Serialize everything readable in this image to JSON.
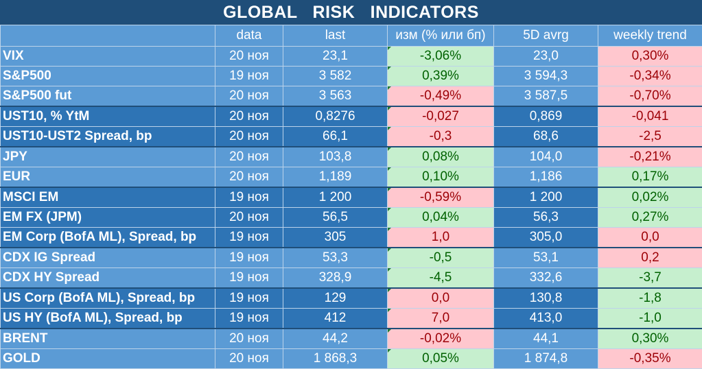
{
  "title": "GLOBAL   RISK   INDICATORS",
  "headers": [
    "",
    "data",
    "last",
    "изм (% или бп)",
    "5D avrg",
    "weekly trend"
  ],
  "colors": {
    "title_bg": "#1f4e79",
    "light_row": "#5b9bd5",
    "dark_row": "#2e74b5",
    "positive_bg": "#c6efce",
    "positive_text": "#006100",
    "negative_bg": "#ffc7ce",
    "negative_text": "#9c0006"
  },
  "rows": [
    {
      "name": "VIX",
      "date": "20 ноя",
      "last": "23,1",
      "change": "-3,06%",
      "change_tone": "pos",
      "avg5d": "23,0",
      "weekly": "0,30%",
      "weekly_tone": "neg",
      "shade": "light",
      "sep": false
    },
    {
      "name": "S&P500",
      "date": "19 ноя",
      "last": "3 582",
      "change": "0,39%",
      "change_tone": "pos",
      "avg5d": "3 594,3",
      "weekly": "-0,34%",
      "weekly_tone": "neg",
      "shade": "light",
      "sep": false
    },
    {
      "name": "S&P500 fut",
      "date": "20 ноя",
      "last": "3 563",
      "change": "-0,49%",
      "change_tone": "neg",
      "avg5d": "3 587,5",
      "weekly": "-0,70%",
      "weekly_tone": "neg",
      "shade": "light",
      "sep": false
    },
    {
      "name": "UST10, % YtM",
      "date": "20 ноя",
      "last": "0,8276",
      "change": "-0,027",
      "change_tone": "neg",
      "avg5d": "0,869",
      "weekly": "-0,041",
      "weekly_tone": "neg",
      "shade": "dark",
      "sep": true
    },
    {
      "name": "UST10-UST2 Spread, bp",
      "date": "20 ноя",
      "last": "66,1",
      "change": "-0,3",
      "change_tone": "neg",
      "avg5d": "68,6",
      "weekly": "-2,5",
      "weekly_tone": "neg",
      "shade": "dark",
      "sep": false
    },
    {
      "name": "JPY",
      "date": "20 ноя",
      "last": "103,8",
      "change": "0,08%",
      "change_tone": "pos",
      "avg5d": "104,0",
      "weekly": "-0,21%",
      "weekly_tone": "neg",
      "shade": "light",
      "sep": true
    },
    {
      "name": "EUR",
      "date": "20 ноя",
      "last": "1,189",
      "change": "0,10%",
      "change_tone": "pos",
      "avg5d": "1,186",
      "weekly": "0,17%",
      "weekly_tone": "pos",
      "shade": "light",
      "sep": false
    },
    {
      "name": "MSCI EM",
      "date": "19 ноя",
      "last": "1 200",
      "change": "-0,59%",
      "change_tone": "neg",
      "avg5d": "1 200",
      "weekly": "0,02%",
      "weekly_tone": "pos",
      "shade": "dark",
      "sep": true
    },
    {
      "name": "EM FX (JPM)",
      "date": "20 ноя",
      "last": "56,5",
      "change": "0,04%",
      "change_tone": "pos",
      "avg5d": "56,3",
      "weekly": "0,27%",
      "weekly_tone": "pos",
      "shade": "dark",
      "sep": false
    },
    {
      "name": "EM Corp (BofA ML), Spread, bp",
      "date": "19 ноя",
      "last": "305",
      "change": "1,0",
      "change_tone": "neg",
      "avg5d": "305,0",
      "weekly": "0,0",
      "weekly_tone": "neg",
      "shade": "dark",
      "sep": false
    },
    {
      "name": "CDX IG Spread",
      "date": "19 ноя",
      "last": "53,3",
      "change": "-0,5",
      "change_tone": "pos",
      "avg5d": "53,1",
      "weekly": "0,2",
      "weekly_tone": "neg",
      "shade": "light",
      "sep": true
    },
    {
      "name": "CDX HY Spread",
      "date": "19 ноя",
      "last": "328,9",
      "change": "-4,5",
      "change_tone": "pos",
      "avg5d": "332,6",
      "weekly": "-3,7",
      "weekly_tone": "pos",
      "shade": "light",
      "sep": false
    },
    {
      "name": "US Corp (BofA ML), Spread, bp",
      "date": "19 ноя",
      "last": "129",
      "change": "0,0",
      "change_tone": "neg",
      "avg5d": "130,8",
      "weekly": "-1,8",
      "weekly_tone": "pos",
      "shade": "dark",
      "sep": true
    },
    {
      "name": "US HY (BofA ML), Spread, bp",
      "date": "19 ноя",
      "last": "412",
      "change": "7,0",
      "change_tone": "neg",
      "avg5d": "413,0",
      "weekly": "-1,0",
      "weekly_tone": "pos",
      "shade": "dark",
      "sep": false
    },
    {
      "name": "BRENT",
      "date": "20 ноя",
      "last": "44,2",
      "change": "-0,02%",
      "change_tone": "neg",
      "avg5d": "44,1",
      "weekly": "0,30%",
      "weekly_tone": "pos",
      "shade": "light",
      "sep": true
    },
    {
      "name": "GOLD",
      "date": "20 ноя",
      "last": "1 868,3",
      "change": "0,05%",
      "change_tone": "pos",
      "avg5d": "1 874,8",
      "weekly": "-0,35%",
      "weekly_tone": "neg",
      "shade": "light",
      "sep": false
    }
  ]
}
